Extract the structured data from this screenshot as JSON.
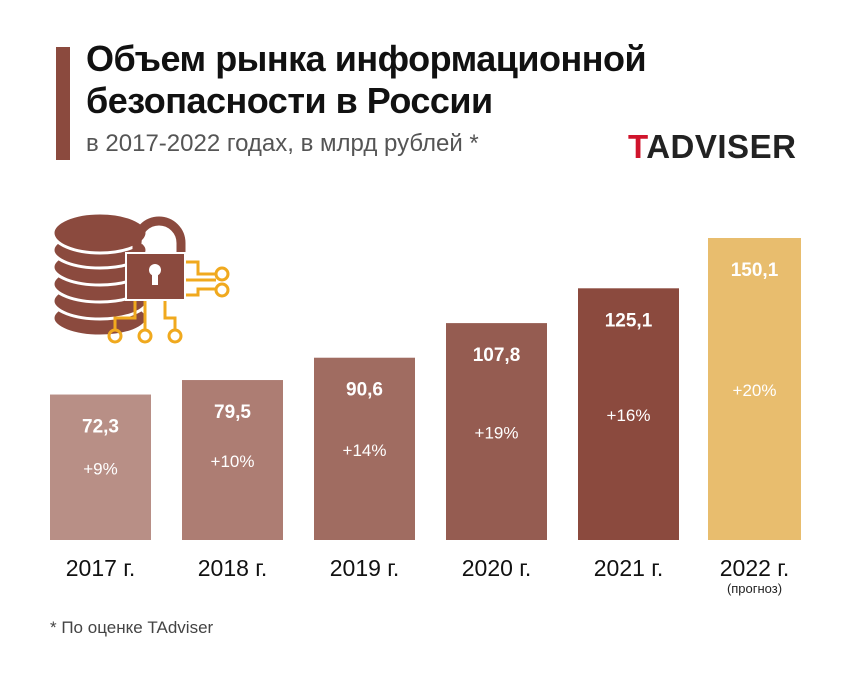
{
  "header": {
    "title_line1": "Объем рынка информационной",
    "title_line2": "безопасности в России",
    "subtitle": "в 2017-2022 годах, в млрд рублей *",
    "logo_first": "T",
    "logo_rest": "ADVISER"
  },
  "footnote": "* По оценке TAdviser",
  "icon": "database-lock-circuit-icon",
  "chart_data": {
    "type": "bar",
    "title": "Объем рынка информационной безопасности в России",
    "subtitle": "в 2017-2022 годах, в млрд рублей *",
    "categories": [
      "2017 г.",
      "2018 г.",
      "2019 г.",
      "2020 г.",
      "2021 г.",
      "2022 г."
    ],
    "category_notes": [
      "",
      "",
      "",
      "",
      "",
      "(прогноз)"
    ],
    "values": [
      72.3,
      79.5,
      90.6,
      107.8,
      125.1,
      150.1
    ],
    "value_labels": [
      "72,3",
      "79,5",
      "90,6",
      "107,8",
      "125,1",
      "150,1"
    ],
    "growth_labels": [
      "+9%",
      "+10%",
      "+14%",
      "+19%",
      "+16%",
      "+20%"
    ],
    "colors": [
      "#b88f86",
      "#ad7d73",
      "#a06c61",
      "#955c51",
      "#8b4a3e",
      "#e8bd6e"
    ],
    "ylim": [
      0,
      150.1
    ],
    "grid": false,
    "axes_visible": false
  }
}
